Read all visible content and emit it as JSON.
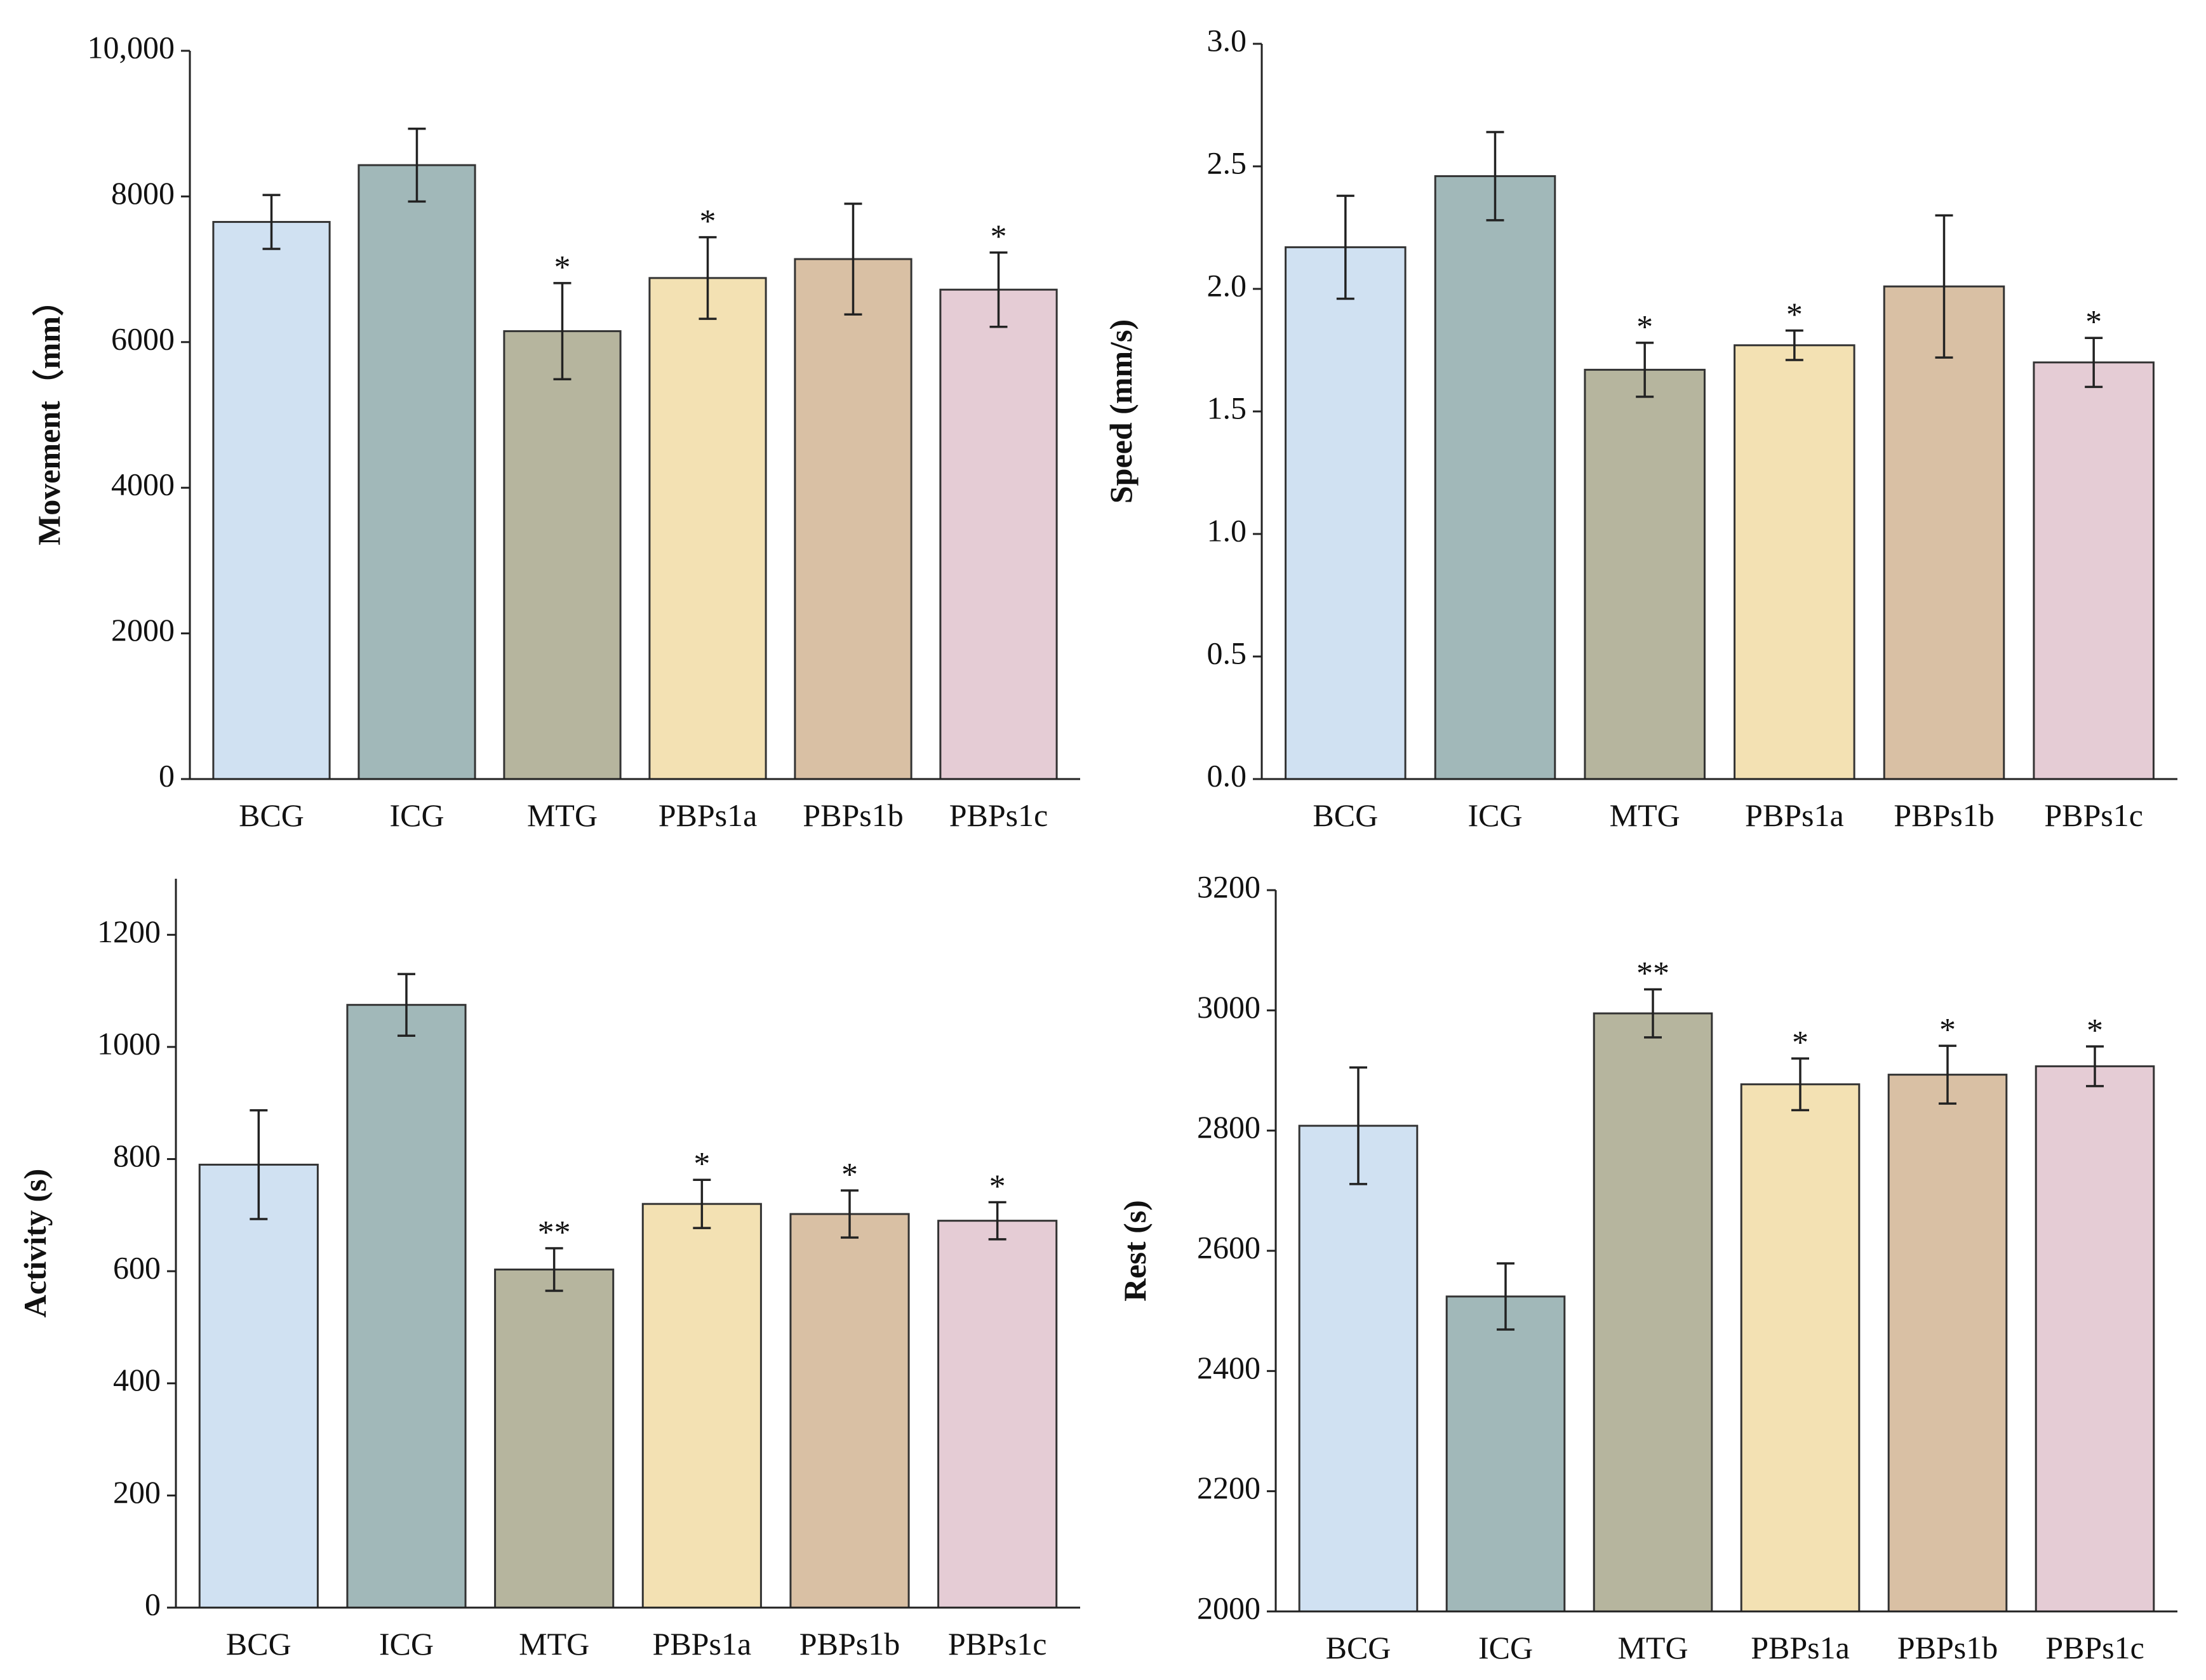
{
  "chart_data": [
    {
      "type": "bar",
      "y_label": "Movement（mm）",
      "categories": [
        "BCG",
        "ICG",
        "MTG",
        "PBPs1a",
        "PBPs1b",
        "PBPs1c"
      ],
      "values": [
        7650,
        8430,
        6150,
        6880,
        7140,
        6720
      ],
      "errors": [
        370,
        500,
        660,
        560,
        760,
        510
      ],
      "annotations": [
        null,
        null,
        "*",
        "*",
        null,
        "*"
      ],
      "colors": [
        "#d0e1f2",
        "#a1b8b9",
        "#b6b59e",
        "#f3e1b3",
        "#d9c0a4",
        "#e5ccd5"
      ],
      "ylim": [
        0,
        10000
      ],
      "yticks": [
        0,
        2000,
        4000,
        6000,
        8000,
        {
          "value": 10000,
          "label": "10,000"
        }
      ]
    },
    {
      "type": "bar",
      "y_label": "Speed (mm/s)",
      "categories": [
        "BCG",
        "ICG",
        "MTG",
        "PBPs1a",
        "PBPs1b",
        "PBPs1c"
      ],
      "values": [
        2.17,
        2.46,
        1.67,
        1.77,
        2.01,
        1.7
      ],
      "errors": [
        0.21,
        0.18,
        0.11,
        0.06,
        0.29,
        0.1
      ],
      "annotations": [
        null,
        null,
        "*",
        "*",
        null,
        "*"
      ],
      "colors": [
        "#d0e1f2",
        "#a1b8b9",
        "#b6b59e",
        "#f3e1b3",
        "#d9c0a4",
        "#e5ccd5"
      ],
      "ylim": [
        0,
        3
      ],
      "yticks": [
        {
          "value": 0,
          "label": "0.0"
        },
        0.5,
        {
          "value": 1,
          "label": "1.0"
        },
        1.5,
        {
          "value": 2,
          "label": "2.0"
        },
        2.5,
        {
          "value": 3,
          "label": "3.0"
        }
      ]
    },
    {
      "type": "bar",
      "y_label": "Activity (s)",
      "categories": [
        "BCG",
        "ICG",
        "MTG",
        "PBPs1a",
        "PBPs1b",
        "PBPs1c"
      ],
      "values": [
        790,
        1075,
        603,
        720,
        702,
        690
      ],
      "errors": [
        97,
        55,
        38,
        43,
        42,
        33
      ],
      "annotations": [
        null,
        null,
        "**",
        "*",
        "*",
        "*"
      ],
      "colors": [
        "#d0e1f2",
        "#a1b8b9",
        "#b6b59e",
        "#f3e1b3",
        "#d9c0a4",
        "#e5ccd5"
      ],
      "ylim": [
        0,
        1300
      ],
      "yticks": [
        0,
        200,
        400,
        600,
        800,
        1000,
        1200
      ]
    },
    {
      "type": "bar",
      "y_label": "Rest (s)",
      "categories": [
        "BCG",
        "ICG",
        "MTG",
        "PBPs1a",
        "PBPs1b",
        "PBPs1c"
      ],
      "values": [
        2808,
        2524,
        2995,
        2877,
        2893,
        2907
      ],
      "errors": [
        97,
        55,
        40,
        43,
        48,
        33
      ],
      "annotations": [
        null,
        null,
        "**",
        "*",
        "*",
        "*"
      ],
      "colors": [
        "#d0e1f2",
        "#a1b8b9",
        "#b6b59e",
        "#f3e1b3",
        "#d9c0a4",
        "#e5ccd5"
      ],
      "ylim": [
        2000,
        3200
      ],
      "yticks": [
        2000,
        2200,
        2400,
        2600,
        2800,
        3000,
        3200
      ]
    }
  ]
}
